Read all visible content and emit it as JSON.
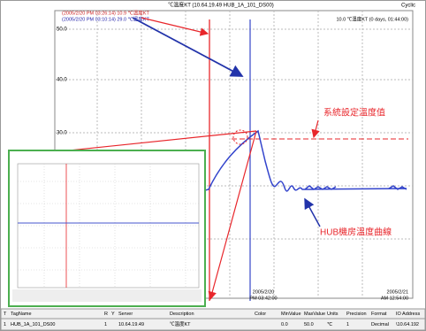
{
  "window": {
    "title": "℃溫度KT (10.64.19.49 HUB_1A_101_DS00)",
    "mode": "Cyclic"
  },
  "plot": {
    "legend": [
      "(2005/2/20 PM 03:26:14)  10.9 ℃溫度KT",
      "(2005/2/20 PM 03:10:14)  29.0 ℃溫度KT"
    ],
    "range_note": "10.0 ℃溫度KT (0 days, 01:44:00)",
    "y_labels": [
      "50.0",
      "40.0",
      "30.0"
    ],
    "x_labels": [
      [
        "2005/2/20",
        "PM 03:42:00"
      ],
      [
        "2005/2/21",
        "AM 12:54:00"
      ]
    ],
    "annotations": {
      "setpoint": "系統設定溫度值",
      "curve": "HUB機房溫度曲線"
    }
  },
  "table": {
    "header": [
      "T",
      "TagName",
      "R",
      "Y",
      "Server",
      "Description",
      "Color",
      "MinValue",
      "MaxValue",
      "Units",
      "Precision",
      "Format",
      "IO Address"
    ],
    "rows": [
      [
        "1",
        "HUB_1A_101_DS00",
        "1",
        "",
        "10.64.19.49",
        "℃溫度KT",
        "",
        "0.0",
        "50.0",
        "℃",
        "1",
        "Decimal",
        "\\10.64.192"
      ]
    ]
  }
}
